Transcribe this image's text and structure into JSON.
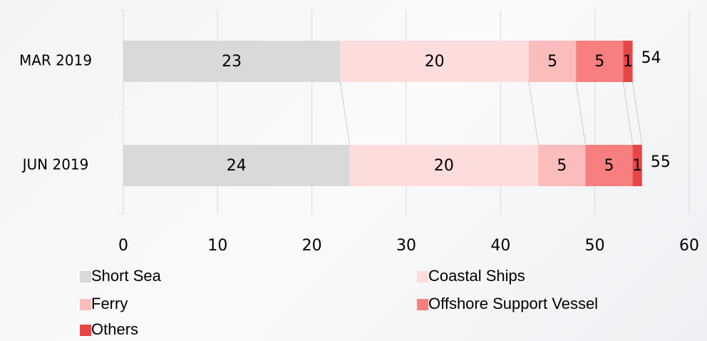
{
  "chart_data": {
    "type": "stacked-bar-horizontal",
    "categories": [
      "MAR 2019",
      "JUN 2019"
    ],
    "series": [
      {
        "name": "Short Sea",
        "color": "#d9d9d9",
        "values": [
          23,
          24
        ]
      },
      {
        "name": "Coastal Ships",
        "color": "#fddcdc",
        "values": [
          20,
          20
        ]
      },
      {
        "name": "Ferry",
        "color": "#fbbcbc",
        "values": [
          5,
          5
        ]
      },
      {
        "name": "Offshore Support Vessel",
        "color": "#f77f7f",
        "values": [
          5,
          5
        ]
      },
      {
        "name": "Others",
        "color": "#e84646",
        "values": [
          1,
          1
        ]
      }
    ],
    "totals": [
      54,
      55
    ],
    "xlim": [
      0,
      60
    ],
    "xticks": [
      0,
      10,
      20,
      30,
      40,
      50,
      60
    ],
    "grid": true
  }
}
